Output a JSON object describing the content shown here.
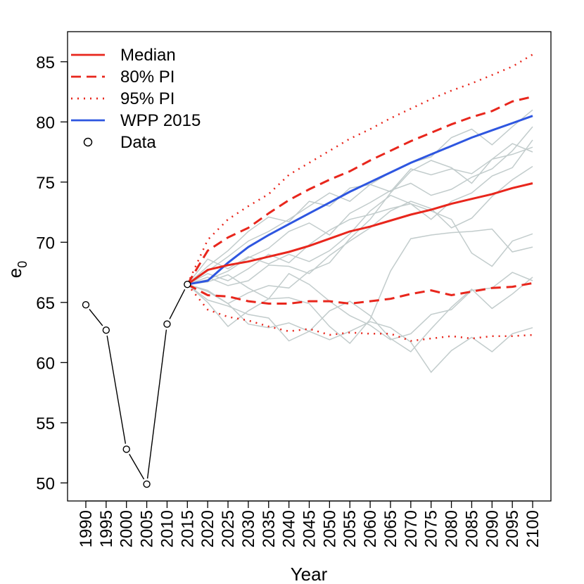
{
  "chart_data": {
    "type": "line",
    "title": "",
    "xlabel": "Year",
    "ylabel": {
      "main": "e",
      "sub": "0"
    },
    "xlim": [
      1985.5,
      2104.5
    ],
    "ylim": [
      48.5,
      87.5
    ],
    "x_ticks": [
      "1990",
      "1995",
      "2000",
      "2005",
      "2010",
      "2015",
      "2020",
      "2025",
      "2030",
      "2035",
      "2040",
      "2045",
      "2050",
      "2055",
      "2060",
      "2065",
      "2070",
      "2075",
      "2080",
      "2085",
      "2090",
      "2095",
      "2100"
    ],
    "y_ticks": [
      "50",
      "55",
      "60",
      "65",
      "70",
      "75",
      "80",
      "85"
    ],
    "legend": {
      "position": "top-left",
      "entries": [
        {
          "label": "Median",
          "color": "#e8261c",
          "style": "solid"
        },
        {
          "label": "80% PI",
          "color": "#e8261c",
          "style": "dashed"
        },
        {
          "label": "95% PI",
          "color": "#e8261c",
          "style": "dotted"
        },
        {
          "label": "WPP 2015",
          "color": "#2e56e0",
          "style": "solid"
        },
        {
          "label": "Data",
          "color": "#000000",
          "style": "circle"
        }
      ]
    },
    "colors": {
      "median": "#e8261c",
      "wpp": "#2e56e0",
      "trajectory": "#c2cccc",
      "data": "#000000"
    },
    "projection_years": [
      2015,
      2020,
      2025,
      2030,
      2035,
      2040,
      2045,
      2050,
      2055,
      2060,
      2065,
      2070,
      2075,
      2080,
      2085,
      2090,
      2095,
      2100
    ],
    "data": {
      "x": [
        1990,
        1995,
        2000,
        2005,
        2010,
        2015
      ],
      "y": [
        64.8,
        62.7,
        52.8,
        49.9,
        63.2,
        66.5
      ]
    },
    "series": [
      {
        "name": "Median",
        "values": [
          66.5,
          67.7,
          68.1,
          68.4,
          68.8,
          69.2,
          69.7,
          70.3,
          70.9,
          71.3,
          71.8,
          72.3,
          72.7,
          73.2,
          73.6,
          74.0,
          74.5,
          74.9
        ]
      },
      {
        "name": "80% PI upper",
        "values": [
          66.5,
          69.3,
          70.4,
          71.2,
          72.4,
          73.5,
          74.4,
          75.2,
          75.9,
          76.8,
          77.6,
          78.4,
          79.1,
          79.8,
          80.4,
          80.9,
          81.7,
          82.1
        ]
      },
      {
        "name": "80% PI lower",
        "values": [
          66.5,
          65.6,
          65.5,
          65.1,
          64.9,
          64.9,
          65.1,
          65.1,
          64.9,
          65.1,
          65.3,
          65.7,
          66.0,
          65.6,
          65.9,
          66.2,
          66.3,
          66.6
        ]
      },
      {
        "name": "95% PI upper",
        "values": [
          66.5,
          70.2,
          71.9,
          73.0,
          74.0,
          75.6,
          76.6,
          77.6,
          78.6,
          79.4,
          80.3,
          81.1,
          81.9,
          82.6,
          83.2,
          83.9,
          84.6,
          85.6
        ]
      },
      {
        "name": "95% PI lower",
        "values": [
          66.5,
          64.4,
          63.8,
          63.5,
          63.0,
          62.6,
          62.8,
          62.3,
          62.5,
          62.4,
          62.4,
          61.8,
          62.0,
          62.2,
          62.0,
          62.2,
          62.2,
          62.3
        ]
      },
      {
        "name": "WPP 2015",
        "values": [
          66.5,
          66.8,
          68.3,
          69.6,
          70.6,
          71.5,
          72.4,
          73.3,
          74.2,
          75.0,
          75.8,
          76.6,
          77.3,
          78.0,
          78.7,
          79.3,
          79.9,
          80.5
        ]
      }
    ],
    "trajectories": [
      [
        66.5,
        67.6,
        68.8,
        70.1,
        70.9,
        71.9,
        73.0,
        74.1,
        73.4,
        74.8,
        75.8,
        76.6,
        77.1,
        78.7,
        79.4,
        78.1,
        79.6,
        81.0
      ],
      [
        66.5,
        66.0,
        64.9,
        65.8,
        66.4,
        66.2,
        67.6,
        68.3,
        70.3,
        71.9,
        74.1,
        75.9,
        76.8,
        76.2,
        74.9,
        76.9,
        77.3,
        77.9
      ],
      [
        66.5,
        65.2,
        64.7,
        64.0,
        63.7,
        61.8,
        62.6,
        64.3,
        65.1,
        63.9,
        62.0,
        60.9,
        62.8,
        64.6,
        66.1,
        64.5,
        65.7,
        67.1
      ],
      [
        66.5,
        66.9,
        67.6,
        68.7,
        69.5,
        70.9,
        71.6,
        70.6,
        72.4,
        73.3,
        74.3,
        74.9,
        73.9,
        74.4,
        75.4,
        76.1,
        77.6,
        79.6
      ],
      [
        66.5,
        67.1,
        66.4,
        66.8,
        68.1,
        68.0,
        67.4,
        68.9,
        70.1,
        71.2,
        72.6,
        73.4,
        72.8,
        71.2,
        72.0,
        73.8,
        75.2,
        76.3
      ],
      [
        66.5,
        68.6,
        67.8,
        68.8,
        68.2,
        69.0,
        68.4,
        69.3,
        70.7,
        72.6,
        73.9,
        73.2,
        72.6,
        71.9,
        69.1,
        68.0,
        70.1,
        70.7
      ],
      [
        66.5,
        68.0,
        69.3,
        70.9,
        72.1,
        71.7,
        73.4,
        73.0,
        74.5,
        74.8,
        74.2,
        76.1,
        75.6,
        76.1,
        75.7,
        76.9,
        78.2,
        77.5
      ],
      [
        66.5,
        65.9,
        64.9,
        63.2,
        62.9,
        63.3,
        62.6,
        61.9,
        62.6,
        63.4,
        62.9,
        61.7,
        59.2,
        61.0,
        62.1,
        60.9,
        62.4,
        62.9
      ],
      [
        66.5,
        65.0,
        63.0,
        64.3,
        65.3,
        67.4,
        66.5,
        65.1,
        63.9,
        63.1,
        61.9,
        62.4,
        64.0,
        64.4,
        66.0,
        66.2,
        67.5,
        66.8
      ],
      [
        66.5,
        66.7,
        67.3,
        66.2,
        65.3,
        65.4,
        64.9,
        63.0,
        61.6,
        63.6,
        67.6,
        70.3,
        70.6,
        70.8,
        70.9,
        71.1,
        69.2,
        69.6
      ],
      [
        66.5,
        67.4,
        66.8,
        67.8,
        69.0,
        68.3,
        69.8,
        71.0,
        71.9,
        72.3,
        72.8,
        73.2,
        71.9,
        73.4,
        74.1,
        75.5,
        76.2,
        78.5
      ]
    ]
  }
}
